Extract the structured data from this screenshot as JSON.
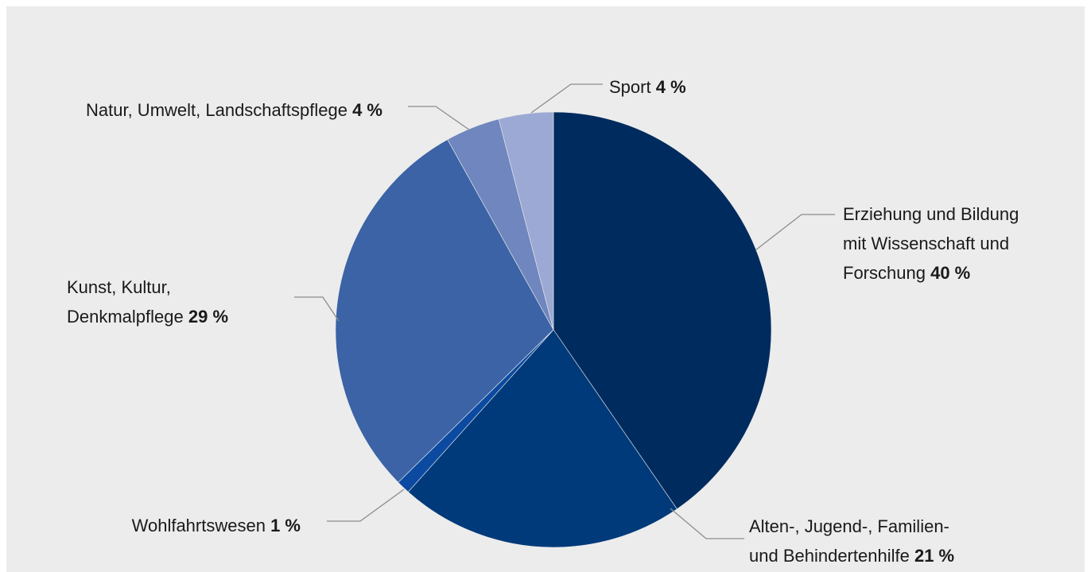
{
  "chart_data": {
    "type": "pie",
    "start_angle_deg": 0,
    "direction": "clockwise",
    "slices": [
      {
        "label_lines": [
          "Erziehung und Bildung",
          "mit Wissenschaft und",
          "Forschung"
        ],
        "value": 40,
        "value_text": "40 %",
        "color": "#002b5e"
      },
      {
        "label_lines": [
          "Alten-, Jugend-, Familien-",
          "und Behindertenhilfe"
        ],
        "value": 21,
        "value_text": "21 %",
        "color": "#003a7a"
      },
      {
        "label_lines": [
          "Wohlfahrtswesen"
        ],
        "value": 1,
        "value_text": "1 %",
        "color": "#0b4aa0"
      },
      {
        "label_lines": [
          "Kunst, Kultur,",
          "Denkmalpflege"
        ],
        "value": 29,
        "value_text": "29 %",
        "color": "#3b63a6"
      },
      {
        "label_lines": [
          "Natur, Umwelt, Landschaftspflege"
        ],
        "value": 4,
        "value_text": "4 %",
        "color": "#6f86be"
      },
      {
        "label_lines": [
          "Sport"
        ],
        "value": 4,
        "value_text": "4 %",
        "color": "#9ba9d4"
      }
    ]
  }
}
